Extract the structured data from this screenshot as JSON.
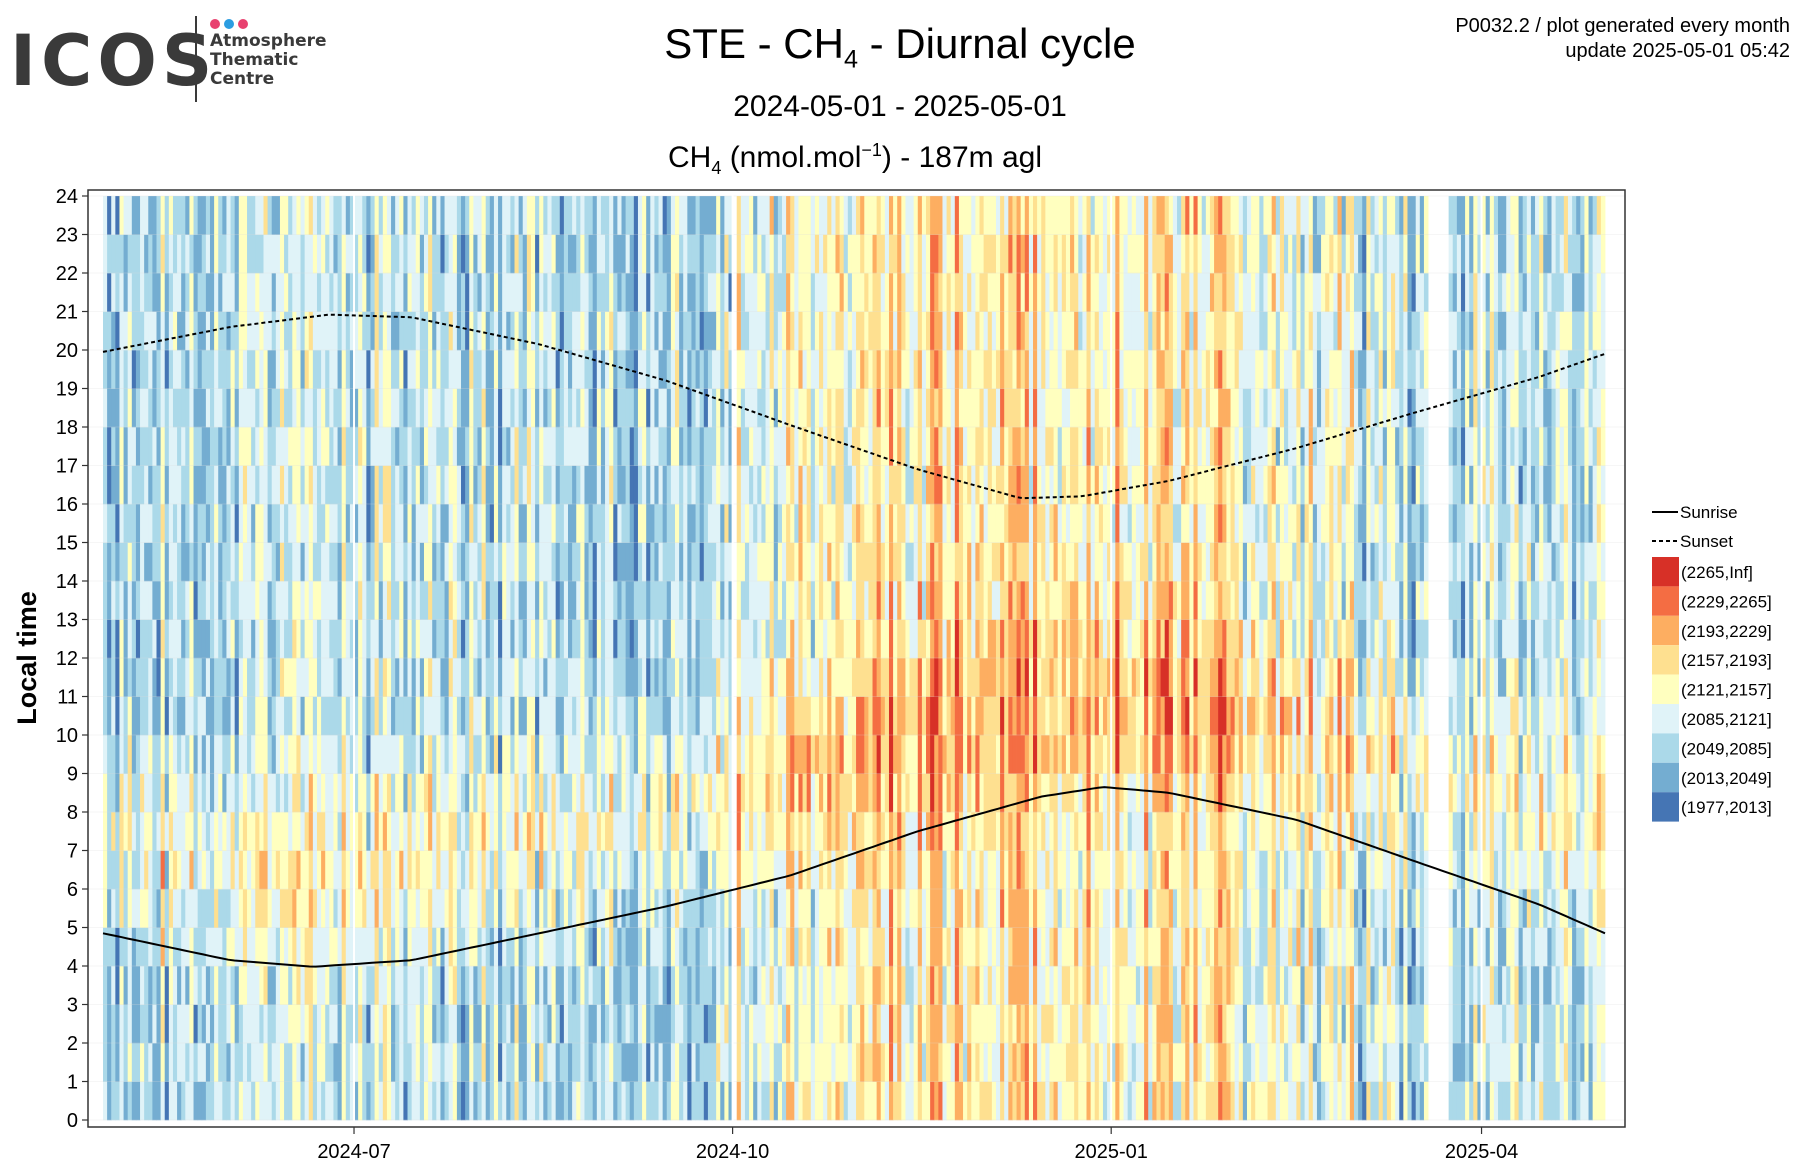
{
  "logo": {
    "word": "ICOS",
    "line1": "Atmosphere",
    "line2": "Thematic",
    "line3": "Centre",
    "dot_colors": [
      "#e8416f",
      "#2b9de1",
      "#e8416f"
    ]
  },
  "header": {
    "title_prefix": "STE - CH",
    "title_sub": "4",
    "title_suffix": " - Diurnal cycle",
    "subtitle": "2024-05-01 - 2025-05-01",
    "units_prefix": "CH",
    "units_sub": "4",
    "units_mid": " (nmol.mol",
    "units_sup": "−1",
    "units_suffix": ") - 187m agl",
    "meta_line1": "P0032.2 / plot generated every month",
    "meta_line2": "update  2025-05-01 05:42"
  },
  "chart_data": {
    "type": "heatmap",
    "title": "STE - CH4 - Diurnal cycle",
    "subtitle": "2024-05-01 - 2025-05-01",
    "value_label": "CH4 (nmol.mol-1) - 187m agl",
    "ylabel": "Local time",
    "x_range": [
      "2024-05-01",
      "2025-05-01"
    ],
    "y_range": [
      0,
      24
    ],
    "x_ticks": [
      "2024-07",
      "2024-10",
      "2025-01",
      "2025-04"
    ],
    "y_ticks": [
      0,
      1,
      2,
      3,
      4,
      5,
      6,
      7,
      8,
      9,
      10,
      11,
      12,
      13,
      14,
      15,
      16,
      17,
      18,
      19,
      20,
      21,
      22,
      23,
      24
    ],
    "grid": true,
    "legend_position": "right",
    "sunrise": {
      "name": "Sunrise",
      "style": "solid",
      "points": [
        [
          "2024-05-01",
          4.85
        ],
        [
          "2024-06-01",
          4.15
        ],
        [
          "2024-06-21",
          3.98
        ],
        [
          "2024-07-15",
          4.15
        ],
        [
          "2024-08-15",
          4.85
        ],
        [
          "2024-09-15",
          5.55
        ],
        [
          "2024-10-15",
          6.35
        ],
        [
          "2024-11-15",
          7.5
        ],
        [
          "2024-12-15",
          8.4
        ],
        [
          "2024-12-30",
          8.65
        ],
        [
          "2025-01-15",
          8.5
        ],
        [
          "2025-02-15",
          7.8
        ],
        [
          "2025-03-15",
          6.75
        ],
        [
          "2025-04-15",
          5.6
        ],
        [
          "2025-05-01",
          4.85
        ]
      ]
    },
    "sunset": {
      "name": "Sunset",
      "style": "dashed",
      "points": [
        [
          "2024-05-01",
          19.95
        ],
        [
          "2024-06-01",
          20.6
        ],
        [
          "2024-06-25",
          20.92
        ],
        [
          "2024-07-15",
          20.85
        ],
        [
          "2024-08-15",
          20.15
        ],
        [
          "2024-09-15",
          19.2
        ],
        [
          "2024-10-15",
          18.05
        ],
        [
          "2024-11-15",
          16.9
        ],
        [
          "2024-12-10",
          16.15
        ],
        [
          "2024-12-25",
          16.2
        ],
        [
          "2025-01-15",
          16.6
        ],
        [
          "2025-02-15",
          17.45
        ],
        [
          "2025-03-15",
          18.35
        ],
        [
          "2025-04-15",
          19.3
        ],
        [
          "2025-05-01",
          19.9
        ]
      ]
    },
    "bins": [
      {
        "label": "(2265,Inf]",
        "color": "#d73027"
      },
      {
        "label": "(2229,2265]",
        "color": "#f46d43"
      },
      {
        "label": "(2193,2229]",
        "color": "#fdae61"
      },
      {
        "label": "(2157,2193]",
        "color": "#fee090"
      },
      {
        "label": "(2121,2157]",
        "color": "#ffffbf"
      },
      {
        "label": "(2085,2121]",
        "color": "#e0f3f8"
      },
      {
        "label": "(2049,2085]",
        "color": "#abd9e9"
      },
      {
        "label": "(2013,2049]",
        "color": "#74add1"
      },
      {
        "label": "(1977,2013]",
        "color": "#4575b4"
      }
    ],
    "data_gaps": [
      [
        "2024-10-01",
        "2024-10-01"
      ],
      [
        "2025-03-19",
        "2025-03-23"
      ]
    ]
  }
}
